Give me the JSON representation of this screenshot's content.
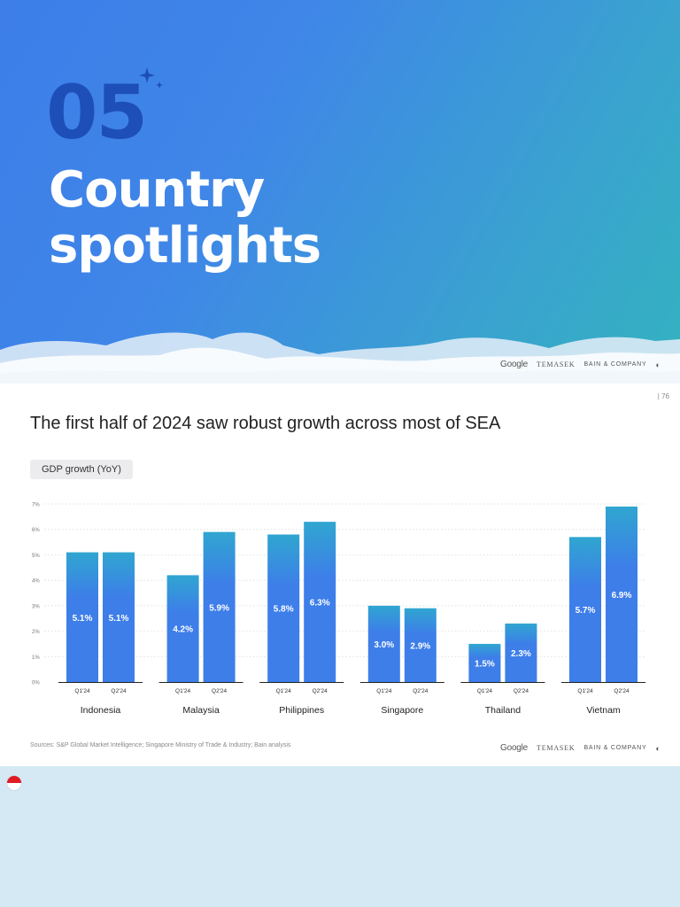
{
  "hero": {
    "number": "05",
    "title": "Country spotlights"
  },
  "logos": {
    "google": "Google",
    "temasek": "TEMASEK",
    "bain": "BAIN & COMPANY"
  },
  "slide": {
    "page_number": "76",
    "heading": "The first half of 2024 saw robust growth across most of SEA",
    "tag": "GDP growth (YoY)",
    "source": "Sources: S&P Global Market Intelligence; Singapore Ministry of Trade & Industry; Bain analysis"
  },
  "colors": {
    "bar_top": "#30a6d0",
    "bar_bottom": "#3d7ee9",
    "hero_dark_number": "#1e4fb8"
  },
  "chart_data": {
    "type": "bar",
    "categories": [
      "Indonesia",
      "Malaysia",
      "Philippines",
      "Singapore",
      "Thailand",
      "Vietnam"
    ],
    "quarters": [
      "Q1'24",
      "Q2'24"
    ],
    "series": [
      {
        "values": [
          5.1,
          4.2,
          5.8,
          3.0,
          1.5,
          5.7
        ]
      },
      {
        "values": [
          5.1,
          5.9,
          6.3,
          2.9,
          2.3,
          6.9
        ]
      }
    ],
    "value_labels": [
      [
        "5.1%",
        "5.1%"
      ],
      [
        "4.2%",
        "5.9%"
      ],
      [
        "5.8%",
        "6.3%"
      ],
      [
        "3.0%",
        "2.9%"
      ],
      [
        "1.5%",
        "2.3%"
      ],
      [
        "5.7%",
        "6.9%"
      ]
    ],
    "yticks": [
      "0%",
      "1%",
      "2%",
      "3%",
      "4%",
      "5%",
      "6%",
      "7%"
    ],
    "ylim": [
      0,
      7
    ],
    "grid": true,
    "ylabel": "",
    "xlabel": "",
    "title": ""
  }
}
